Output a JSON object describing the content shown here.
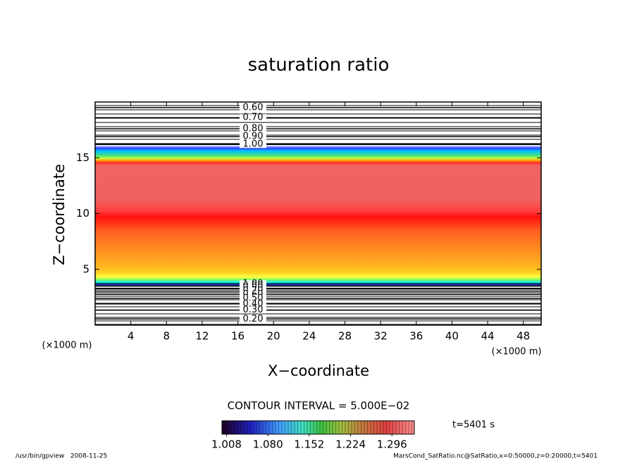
{
  "chart_data": {
    "type": "contour",
    "title": "saturation ratio",
    "x_label": "X−coordinate",
    "y_label": "Z−coordinate",
    "x_unit": "(×1000 m)",
    "y_unit": "(×1000 m)",
    "xlim": [
      0,
      50
    ],
    "ylim": [
      0,
      20
    ],
    "xticks": [
      4,
      8,
      12,
      16,
      20,
      24,
      28,
      32,
      36,
      40,
      44,
      48
    ],
    "yticks": [
      5,
      10,
      15
    ],
    "contours": [
      {
        "label": "0.60",
        "level": 0.6,
        "z": 19.5
      },
      {
        "label": "0.70",
        "level": 0.7,
        "z": 18.6
      },
      {
        "label": "0.80",
        "level": 0.8,
        "z": 17.6
      },
      {
        "label": "0.90",
        "level": 0.9,
        "z": 16.9
      },
      {
        "label": "1.00",
        "level": 1.0,
        "z": 16.2
      },
      {
        "label": "1.00",
        "level": 1.0,
        "z": 3.7
      },
      {
        "label": "0.90",
        "level": 0.9,
        "z": 3.5
      },
      {
        "label": "0.80",
        "level": 0.8,
        "z": 3.3
      },
      {
        "label": "0.70",
        "level": 0.7,
        "z": 3.05
      },
      {
        "label": "0.60",
        "level": 0.6,
        "z": 2.75
      },
      {
        "label": "0.50",
        "level": 0.5,
        "z": 2.4
      },
      {
        "label": "0.40",
        "level": 0.4,
        "z": 1.9
      },
      {
        "label": "0.30",
        "level": 0.3,
        "z": 1.35
      },
      {
        "label": "0.20",
        "level": 0.2,
        "z": 0.55
      }
    ],
    "contour_interval": "CONTOUR INTERVAL = 5.000E−02",
    "colorbar": {
      "clim": [
        1.0,
        1.335
      ],
      "ticks": [
        1.008,
        {
          "value": 1.08,
          "label": "1.080"
        },
        1.152,
        1.224,
        1.296
      ]
    },
    "time_label": "t=5401 s",
    "footer_left": "/usr/bin/gpview   2008-11-25",
    "footer_right": "MarsCond_SatRatio.nc@SatRatio,x=0:50000,z=0:20000,t=5401"
  }
}
